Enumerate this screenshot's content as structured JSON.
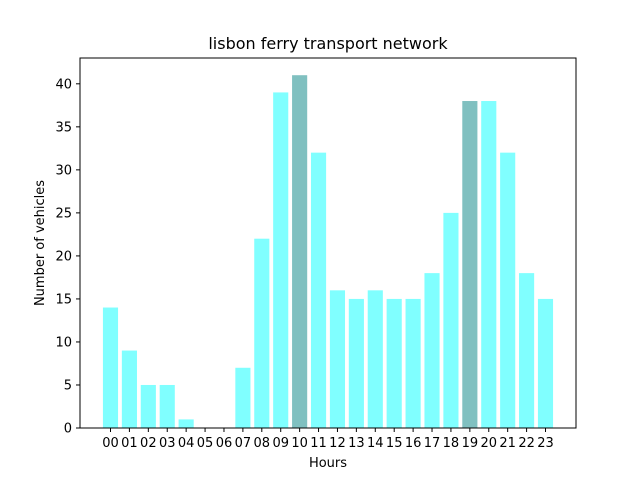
{
  "chart_data": {
    "type": "bar",
    "title": "lisbon ferry transport network",
    "xlabel": "Hours",
    "ylabel": "Number of vehicles",
    "ylim": [
      0,
      43
    ],
    "yticks": [
      0,
      5,
      10,
      15,
      20,
      25,
      30,
      35,
      40
    ],
    "categories": [
      "00",
      "01",
      "02",
      "03",
      "04",
      "05",
      "06",
      "07",
      "08",
      "09",
      "10",
      "11",
      "12",
      "13",
      "14",
      "15",
      "16",
      "17",
      "18",
      "19",
      "20",
      "21",
      "22",
      "23"
    ],
    "values": [
      14,
      9,
      5,
      5,
      1,
      0,
      0,
      7,
      22,
      39,
      41,
      32,
      16,
      15,
      16,
      15,
      15,
      18,
      25,
      38,
      38,
      32,
      18,
      15
    ],
    "highlighted": [
      "10",
      "19"
    ],
    "colors": {
      "bar": "#80ffff",
      "highlight": "#80c0c0",
      "axis": "#000000"
    },
    "grid": false,
    "legend": "none"
  }
}
